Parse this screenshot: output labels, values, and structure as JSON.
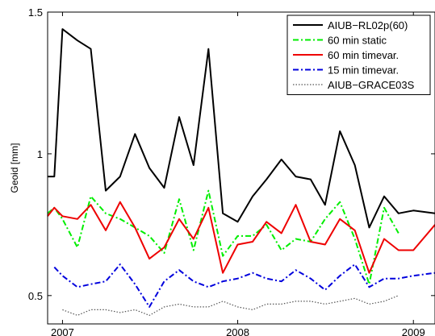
{
  "chart_data": {
    "type": "line",
    "title": "",
    "xlabel": "",
    "ylabel": "Geoid [mm]",
    "xlim": [
      "2006-12-01",
      "2009-02-15"
    ],
    "ylim": [
      0.4,
      1.5
    ],
    "x_ticks": [
      {
        "date": "2007-01-01",
        "label": "2007"
      },
      {
        "date": "2008-01-01",
        "label": "2008"
      },
      {
        "date": "2009-01-01",
        "label": "2009"
      }
    ],
    "y_ticks": [
      {
        "value": 0.5,
        "label": "0.5"
      },
      {
        "value": 1.0,
        "label": "1"
      },
      {
        "value": 1.5,
        "label": "1.5"
      }
    ],
    "grid": false,
    "legend_position": "top-right",
    "series": [
      {
        "name": "AIUB−RL02p(60)",
        "color": "#000000",
        "dash": "solid",
        "points": [
          [
            "2006-12-01",
            0.92
          ],
          [
            "2006-12-15",
            0.92
          ],
          [
            "2007-01-01",
            1.44
          ],
          [
            "2007-02-01",
            1.4
          ],
          [
            "2007-03-01",
            1.37
          ],
          [
            "2007-04-01",
            0.87
          ],
          [
            "2007-05-01",
            0.92
          ],
          [
            "2007-06-01",
            1.07
          ],
          [
            "2007-07-01",
            0.95
          ],
          [
            "2007-08-01",
            0.88
          ],
          [
            "2007-09-01",
            1.13
          ],
          [
            "2007-10-01",
            0.96
          ],
          [
            "2007-11-01",
            1.37
          ],
          [
            "2007-12-01",
            0.79
          ],
          [
            "2008-01-01",
            0.76
          ],
          [
            "2008-02-01",
            0.85
          ],
          [
            "2008-03-01",
            0.91
          ],
          [
            "2008-04-01",
            0.98
          ],
          [
            "2008-05-01",
            0.92
          ],
          [
            "2008-06-01",
            0.91
          ],
          [
            "2008-07-01",
            0.82
          ],
          [
            "2008-08-01",
            1.08
          ],
          [
            "2008-09-01",
            0.96
          ],
          [
            "2008-10-01",
            0.74
          ],
          [
            "2008-11-01",
            0.85
          ],
          [
            "2008-12-01",
            0.79
          ],
          [
            "2009-01-01",
            0.8
          ],
          [
            "2009-02-15",
            0.79
          ]
        ]
      },
      {
        "name": "60 min static",
        "color": "#00ee00",
        "dash": "dash-dot",
        "points": [
          [
            "2006-12-01",
            0.79
          ],
          [
            "2006-12-15",
            0.81
          ],
          [
            "2007-01-01",
            0.77
          ],
          [
            "2007-02-01",
            0.67
          ],
          [
            "2007-03-01",
            0.85
          ],
          [
            "2007-04-01",
            0.79
          ],
          [
            "2007-05-01",
            0.77
          ],
          [
            "2007-06-01",
            0.74
          ],
          [
            "2007-07-01",
            0.71
          ],
          [
            "2007-08-01",
            0.65
          ],
          [
            "2007-09-01",
            0.84
          ],
          [
            "2007-10-01",
            0.66
          ],
          [
            "2007-11-01",
            0.87
          ],
          [
            "2007-12-01",
            0.64
          ],
          [
            "2008-01-01",
            0.71
          ],
          [
            "2008-02-01",
            0.71
          ],
          [
            "2008-03-01",
            0.75
          ],
          [
            "2008-04-01",
            0.66
          ],
          [
            "2008-05-01",
            0.7
          ],
          [
            "2008-06-01",
            0.69
          ],
          [
            "2008-07-01",
            0.77
          ],
          [
            "2008-08-01",
            0.83
          ],
          [
            "2008-09-01",
            0.7
          ],
          [
            "2008-10-01",
            0.54
          ],
          [
            "2008-11-01",
            0.81
          ],
          [
            "2008-12-01",
            0.72
          ]
        ]
      },
      {
        "name": "60 min timevar.",
        "color": "#ee0000",
        "dash": "solid",
        "points": [
          [
            "2006-12-01",
            0.78
          ],
          [
            "2006-12-15",
            0.81
          ],
          [
            "2007-01-01",
            0.78
          ],
          [
            "2007-02-01",
            0.77
          ],
          [
            "2007-03-01",
            0.82
          ],
          [
            "2007-04-01",
            0.73
          ],
          [
            "2007-05-01",
            0.83
          ],
          [
            "2007-06-01",
            0.74
          ],
          [
            "2007-07-01",
            0.63
          ],
          [
            "2007-08-01",
            0.67
          ],
          [
            "2007-09-01",
            0.77
          ],
          [
            "2007-10-01",
            0.7
          ],
          [
            "2007-11-01",
            0.81
          ],
          [
            "2007-12-01",
            0.58
          ],
          [
            "2008-01-01",
            0.68
          ],
          [
            "2008-02-01",
            0.69
          ],
          [
            "2008-03-01",
            0.76
          ],
          [
            "2008-04-01",
            0.72
          ],
          [
            "2008-05-01",
            0.82
          ],
          [
            "2008-06-01",
            0.69
          ],
          [
            "2008-07-01",
            0.68
          ],
          [
            "2008-08-01",
            0.77
          ],
          [
            "2008-09-01",
            0.73
          ],
          [
            "2008-10-01",
            0.58
          ],
          [
            "2008-11-01",
            0.7
          ],
          [
            "2008-12-01",
            0.66
          ],
          [
            "2009-01-01",
            0.66
          ],
          [
            "2009-02-15",
            0.75
          ]
        ]
      },
      {
        "name": "15 min timevar.",
        "color": "#0000dd",
        "dash": "dash-dot",
        "points": [
          [
            "2006-12-15",
            0.6
          ],
          [
            "2007-01-01",
            0.57
          ],
          [
            "2007-02-01",
            0.53
          ],
          [
            "2007-03-01",
            0.54
          ],
          [
            "2007-04-01",
            0.55
          ],
          [
            "2007-05-01",
            0.61
          ],
          [
            "2007-06-01",
            0.54
          ],
          [
            "2007-07-01",
            0.46
          ],
          [
            "2007-08-01",
            0.55
          ],
          [
            "2007-09-01",
            0.59
          ],
          [
            "2007-10-01",
            0.55
          ],
          [
            "2007-11-01",
            0.53
          ],
          [
            "2007-12-01",
            0.55
          ],
          [
            "2008-01-01",
            0.56
          ],
          [
            "2008-02-01",
            0.58
          ],
          [
            "2008-03-01",
            0.56
          ],
          [
            "2008-04-01",
            0.55
          ],
          [
            "2008-05-01",
            0.59
          ],
          [
            "2008-06-01",
            0.56
          ],
          [
            "2008-07-01",
            0.52
          ],
          [
            "2008-08-01",
            0.57
          ],
          [
            "2008-09-01",
            0.61
          ],
          [
            "2008-10-01",
            0.53
          ],
          [
            "2008-11-01",
            0.56
          ],
          [
            "2008-12-01",
            0.56
          ],
          [
            "2009-01-01",
            0.57
          ],
          [
            "2009-02-15",
            0.58
          ]
        ]
      },
      {
        "name": "AIUB−GRACE03S",
        "color": "#555555",
        "dash": "dotted",
        "points": [
          [
            "2007-01-01",
            0.45
          ],
          [
            "2007-02-01",
            0.43
          ],
          [
            "2007-03-01",
            0.45
          ],
          [
            "2007-04-01",
            0.45
          ],
          [
            "2007-05-01",
            0.44
          ],
          [
            "2007-06-01",
            0.45
          ],
          [
            "2007-07-01",
            0.43
          ],
          [
            "2007-08-01",
            0.46
          ],
          [
            "2007-09-01",
            0.47
          ],
          [
            "2007-10-01",
            0.46
          ],
          [
            "2007-11-01",
            0.46
          ],
          [
            "2007-12-01",
            0.48
          ],
          [
            "2008-01-01",
            0.46
          ],
          [
            "2008-02-01",
            0.45
          ],
          [
            "2008-03-01",
            0.47
          ],
          [
            "2008-04-01",
            0.47
          ],
          [
            "2008-05-01",
            0.48
          ],
          [
            "2008-06-01",
            0.48
          ],
          [
            "2008-07-01",
            0.47
          ],
          [
            "2008-08-01",
            0.48
          ],
          [
            "2008-09-01",
            0.49
          ],
          [
            "2008-10-01",
            0.47
          ],
          [
            "2008-11-01",
            0.48
          ],
          [
            "2008-12-01",
            0.5
          ]
        ]
      }
    ]
  }
}
